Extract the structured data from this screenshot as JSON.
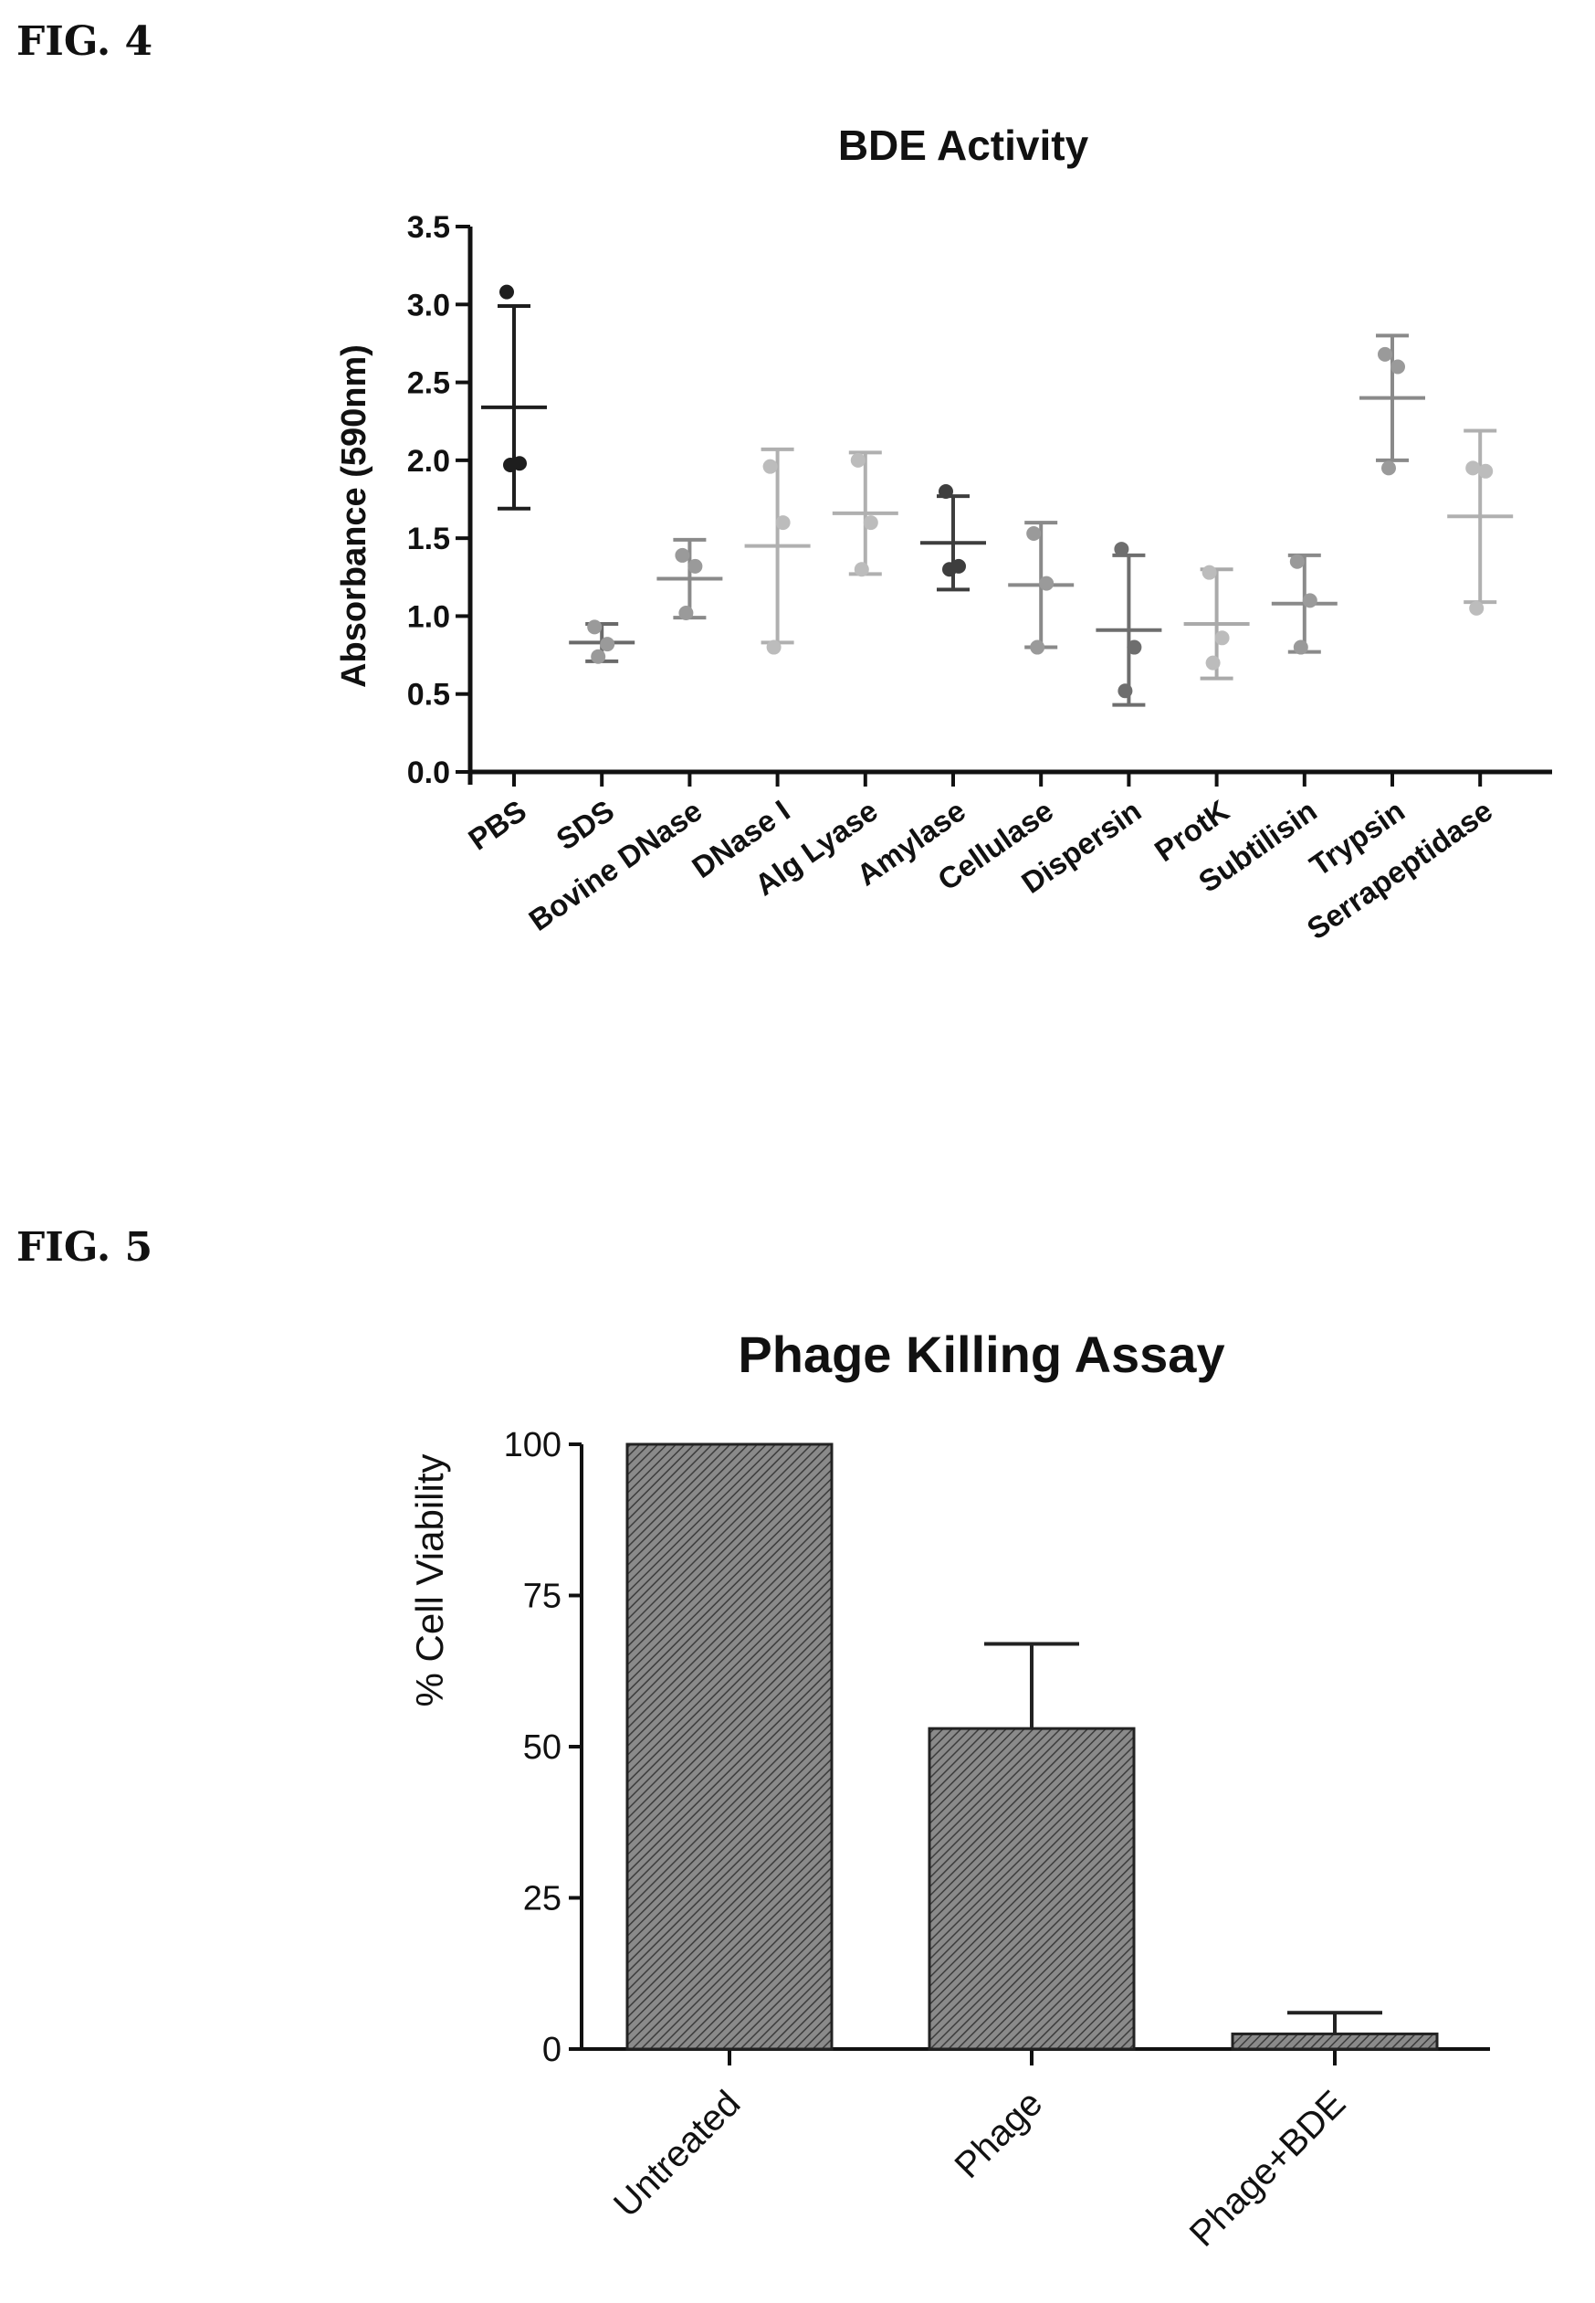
{
  "figures": {
    "fig4_label": "FIG. 4",
    "fig5_label": "FIG. 5"
  },
  "colors": {
    "axis": "#111111",
    "bar_fill": "#8a8a8a",
    "bar_hatch": "#3c3c3c"
  },
  "chart_data": [
    {
      "type": "scatter",
      "title": "BDE Activity",
      "ylabel": "Absorbance (590nm)",
      "xlabel": "",
      "ylim": [
        0,
        3.5
      ],
      "yticks": [
        "0.0",
        "0.5",
        "1.0",
        "1.5",
        "2.0",
        "2.5",
        "3.0",
        "3.5"
      ],
      "grid": false,
      "categories": [
        "PBS",
        "SDS",
        "Bovine DNase",
        "DNase I",
        "Alg Lyase",
        "Amylase",
        "Cellulase",
        "Dispersin",
        "ProtK",
        "Subtilisin",
        "Trypsin",
        "Serrapeptidase"
      ],
      "mean": [
        2.34,
        0.83,
        1.24,
        1.45,
        1.66,
        1.47,
        1.2,
        0.91,
        0.95,
        1.08,
        2.4,
        1.64
      ],
      "sd": [
        0.65,
        0.12,
        0.25,
        0.62,
        0.39,
        0.3,
        0.4,
        0.48,
        0.35,
        0.31,
        0.4,
        0.55
      ],
      "points": [
        [
          3.08,
          1.98,
          1.97
        ],
        [
          0.93,
          0.82,
          0.74
        ],
        [
          1.39,
          1.32,
          1.02
        ],
        [
          1.96,
          1.6,
          0.8
        ],
        [
          2.0,
          1.6,
          1.3
        ],
        [
          1.8,
          1.32,
          1.3
        ],
        [
          1.53,
          1.21,
          0.8
        ],
        [
          1.43,
          0.8,
          0.52
        ],
        [
          1.28,
          0.86,
          0.7
        ],
        [
          1.35,
          1.1,
          0.8
        ],
        [
          2.68,
          2.6,
          1.95
        ],
        [
          1.95,
          1.93,
          1.05
        ]
      ],
      "point_colors": [
        "#1e1e1e",
        "#9a9a9a",
        "#9a9a9a",
        "#bcbcbc",
        "#bcbcbc",
        "#3e3e3e",
        "#9a9a9a",
        "#6e6e6e",
        "#bcbcbc",
        "#9a9a9a",
        "#9a9a9a",
        "#bcbcbc"
      ],
      "error_colors": [
        "#1e1e1e",
        "#6a6a6a",
        "#8a8a8a",
        "#b0b0b0",
        "#b0b0b0",
        "#3e3e3e",
        "#8a8a8a",
        "#6e6e6e",
        "#aaaaaa",
        "#8a8a8a",
        "#8a8a8a",
        "#b0b0b0"
      ]
    },
    {
      "type": "bar",
      "title": "Phage  Killing Assay",
      "ylabel": "% Cell Viability",
      "xlabel": "",
      "ylim": [
        0,
        100
      ],
      "yticks": [
        "0",
        "25",
        "50",
        "75",
        "100"
      ],
      "grid": false,
      "categories": [
        "Untreated",
        "Phage",
        "Phage+BDE"
      ],
      "values": [
        100,
        53,
        2.5
      ],
      "error_upper": [
        0,
        14,
        3.5
      ]
    }
  ]
}
